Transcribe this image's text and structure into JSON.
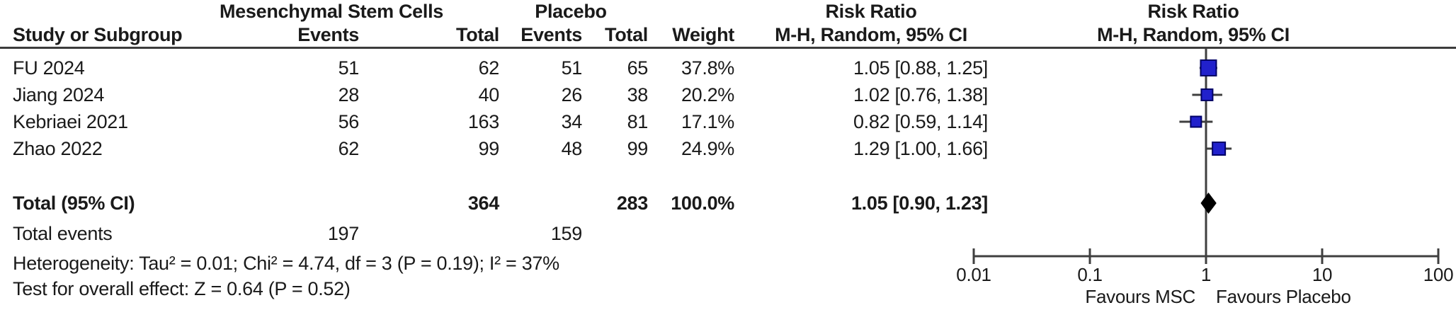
{
  "header": {
    "group_msc": "Mesenchymal Stem Cells",
    "group_placebo": "Placebo",
    "study": "Study or Subgroup",
    "events1": "Events",
    "total1": "Total",
    "events2": "Events",
    "total2": "Total",
    "weight": "Weight",
    "rr_title": "Risk Ratio",
    "rr_sub": "M-H, Random, 95% CI",
    "plot_title": "Risk Ratio",
    "plot_sub": "M-H, Random, 95% CI"
  },
  "colors": {
    "square_fill": "#2121cc",
    "square_border": "#000066",
    "diamond": "#000000",
    "line": "#3f3f3f",
    "text": "#1a1a1a"
  },
  "chart_data": {
    "type": "forest",
    "effect_measure": "Risk Ratio",
    "method": "M-H, Random, 95% CI",
    "x_scale": "log",
    "x_ticks": [
      0.01,
      0.1,
      1,
      10,
      100
    ],
    "x_tick_labels": [
      "0.01",
      "0.1",
      "1",
      "10",
      "100"
    ],
    "xlabel_left": "Favours MSC",
    "xlabel_right": "Favours Placebo",
    "studies": [
      {
        "name": "FU 2024",
        "msc_events": "51",
        "msc_total": "62",
        "placebo_events": "51",
        "placebo_total": "65",
        "weight": "37.8%",
        "weight_value": 37.8,
        "rr": 1.05,
        "ci_low": 0.88,
        "ci_high": 1.25,
        "rr_text": "1.05 [0.88, 1.25]"
      },
      {
        "name": "Jiang 2024",
        "msc_events": "28",
        "msc_total": "40",
        "placebo_events": "26",
        "placebo_total": "38",
        "weight": "20.2%",
        "weight_value": 20.2,
        "rr": 1.02,
        "ci_low": 0.76,
        "ci_high": 1.38,
        "rr_text": "1.02 [0.76, 1.38]"
      },
      {
        "name": "Kebriaei 2021",
        "msc_events": "56",
        "msc_total": "163",
        "placebo_events": "34",
        "placebo_total": "81",
        "weight": "17.1%",
        "weight_value": 17.1,
        "rr": 0.82,
        "ci_low": 0.59,
        "ci_high": 1.14,
        "rr_text": "0.82 [0.59, 1.14]"
      },
      {
        "name": "Zhao 2022",
        "msc_events": "62",
        "msc_total": "99",
        "placebo_events": "48",
        "placebo_total": "99",
        "weight": "24.9%",
        "weight_value": 24.9,
        "rr": 1.29,
        "ci_low": 1.0,
        "ci_high": 1.66,
        "rr_text": "1.29 [1.00, 1.66]"
      }
    ],
    "total": {
      "label": "Total (95% CI)",
      "msc_total": "364",
      "placebo_total": "283",
      "weight": "100.0%",
      "rr": 1.05,
      "ci_low": 0.9,
      "ci_high": 1.23,
      "rr_text": "1.05 [0.90, 1.23]"
    },
    "total_events": {
      "label": "Total events",
      "msc": "197",
      "placebo": "159"
    },
    "heterogeneity": "Heterogeneity: Tau² = 0.01; Chi² = 4.74, df = 3 (P = 0.19); I² = 37%",
    "overall_effect": "Test for overall effect: Z = 0.64 (P = 0.52)"
  }
}
